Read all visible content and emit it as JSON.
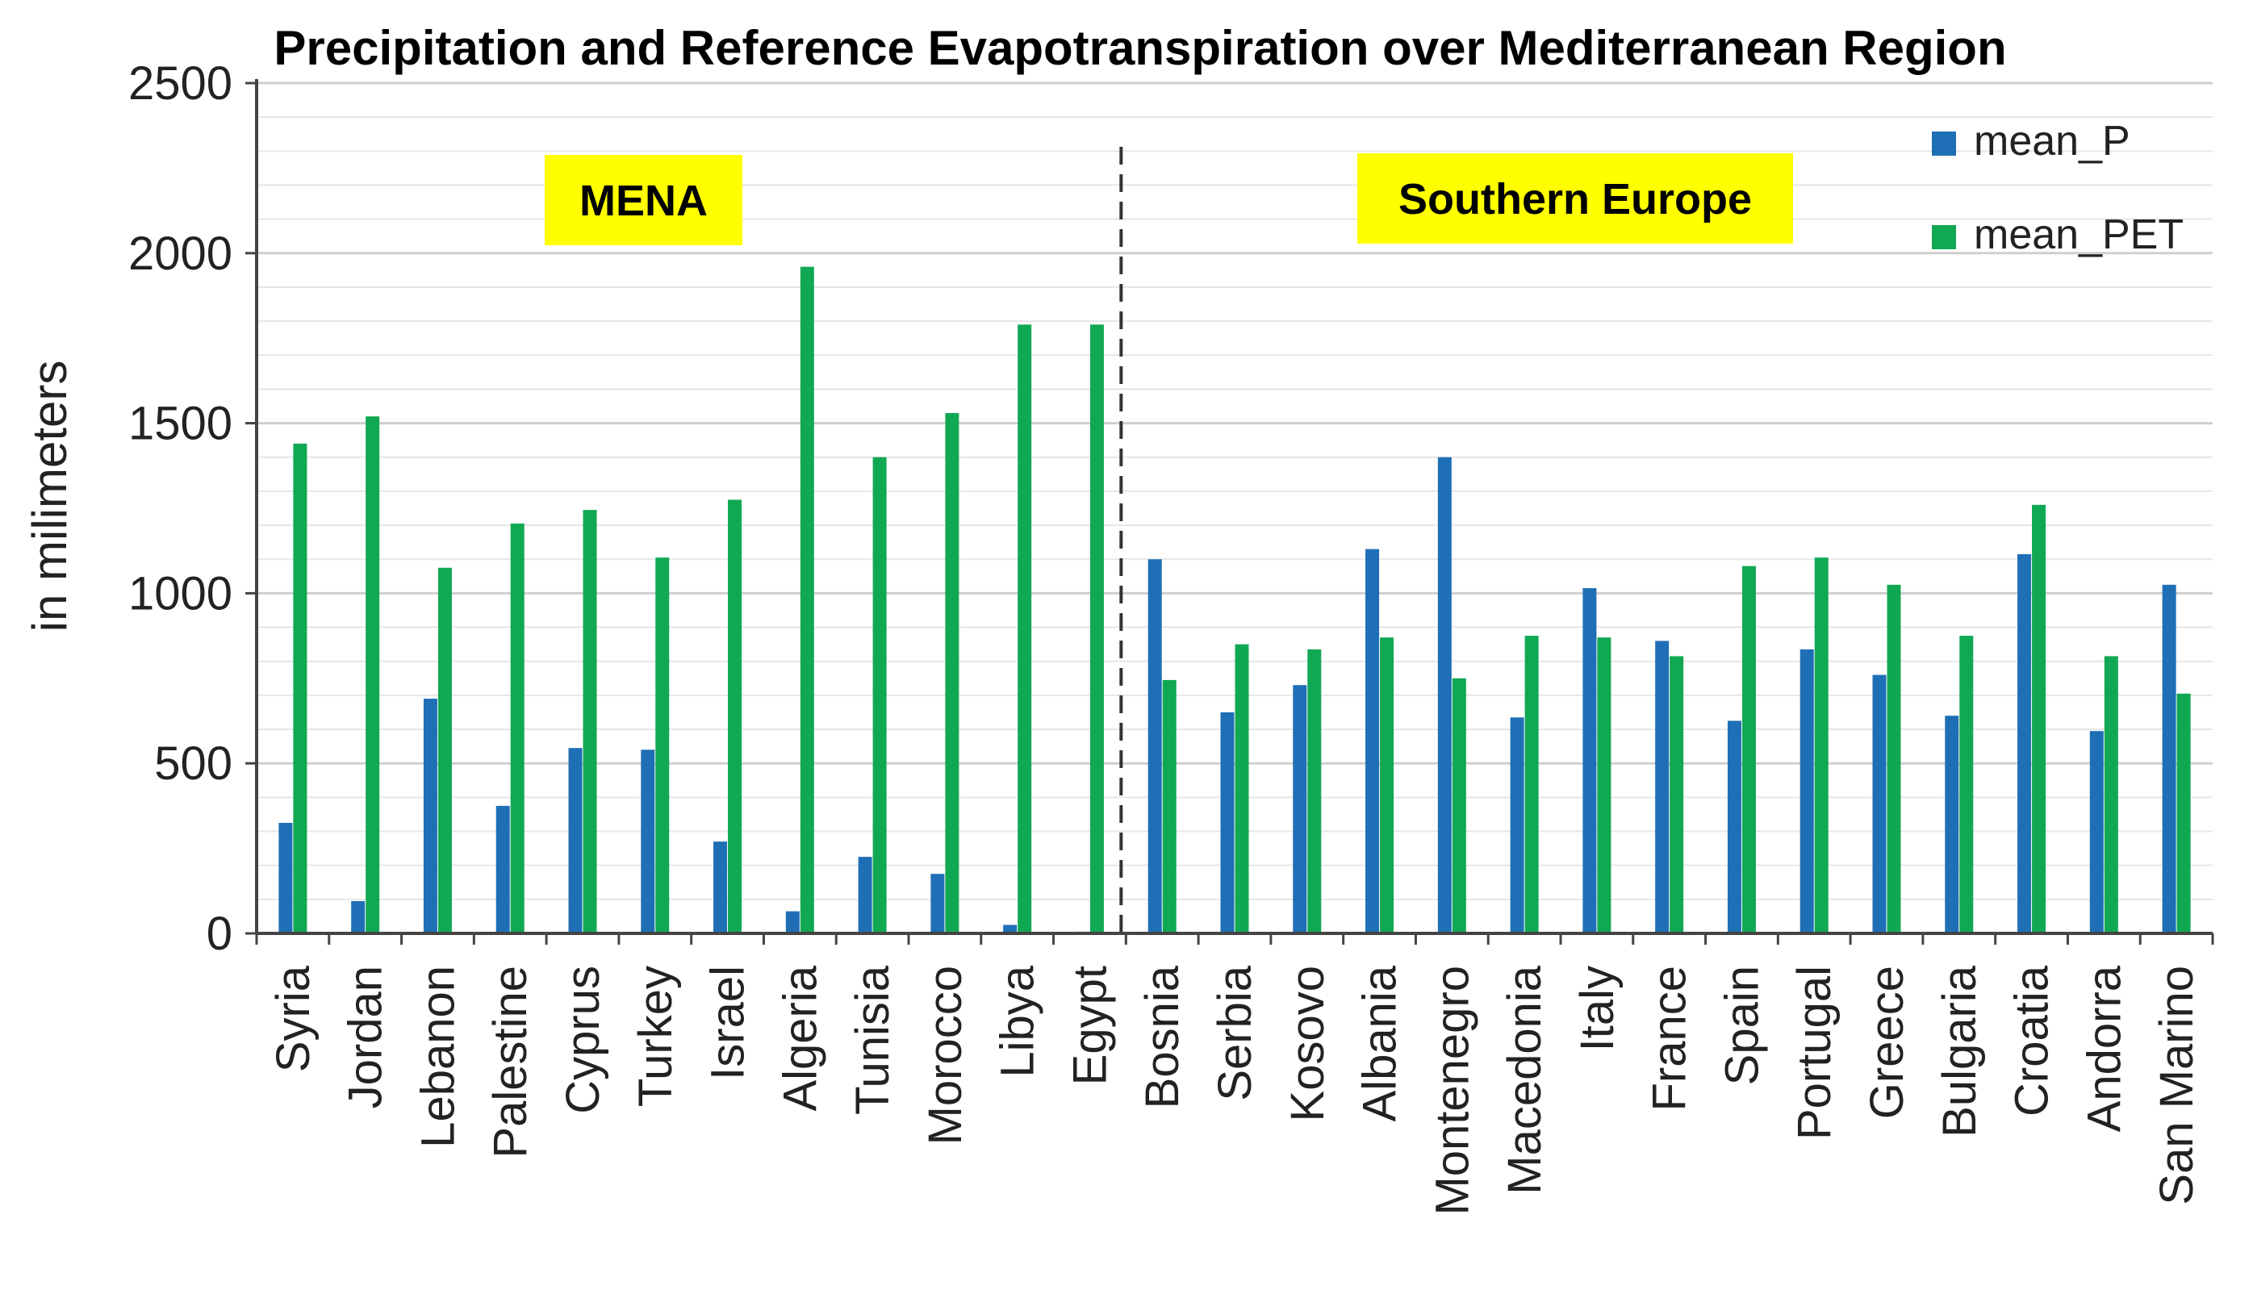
{
  "chart_data": {
    "type": "bar",
    "title": "Precipitation and Reference Evapotranspiration over Mediterranean Region",
    "xlabel": "",
    "ylabel": "in milimeters",
    "ylim": [
      0,
      2500
    ],
    "yticks": [
      0,
      500,
      1000,
      1500,
      2000,
      2500
    ],
    "minor_grid_step": 100,
    "grid": true,
    "legend_position": "top-right",
    "categories": [
      "Syria",
      "Jordan",
      "Lebanon",
      "Palestine",
      "Cyprus",
      "Turkey",
      "Israel",
      "Algeria",
      "Tunisia",
      "Morocco",
      "Libya",
      "Egypt",
      "Bosnia",
      "Serbia",
      "Kosovo",
      "Albania",
      "Montenegro",
      "Macedonia",
      "Italy",
      "France",
      "Spain",
      "Portugal",
      "Greece",
      "Bulgaria",
      "Croatia",
      "Andorra",
      "San Marino"
    ],
    "series": [
      {
        "name": "mean_P",
        "color": "#1f6fb6",
        "values": [
          325,
          95,
          690,
          375,
          545,
          540,
          270,
          65,
          225,
          175,
          25,
          5,
          1100,
          650,
          730,
          1130,
          1400,
          635,
          1015,
          860,
          625,
          835,
          760,
          640,
          1115,
          595,
          1025
        ]
      },
      {
        "name": "mean_PET",
        "color": "#11a853",
        "values": [
          1440,
          1520,
          1075,
          1205,
          1245,
          1105,
          1275,
          1960,
          1400,
          1530,
          1790,
          1790,
          745,
          850,
          835,
          870,
          750,
          875,
          870,
          815,
          1080,
          1105,
          1025,
          875,
          1260,
          815,
          705
        ]
      }
    ],
    "regions": [
      {
        "label": "MENA",
        "from_category": "Syria",
        "to_category": "Egypt",
        "highlight": "#ffff00"
      },
      {
        "label": "Southern Europe",
        "from_category": "Bosnia",
        "to_category": "San Marino",
        "highlight": "#ffff00"
      }
    ],
    "divider_after_category": "Egypt"
  }
}
